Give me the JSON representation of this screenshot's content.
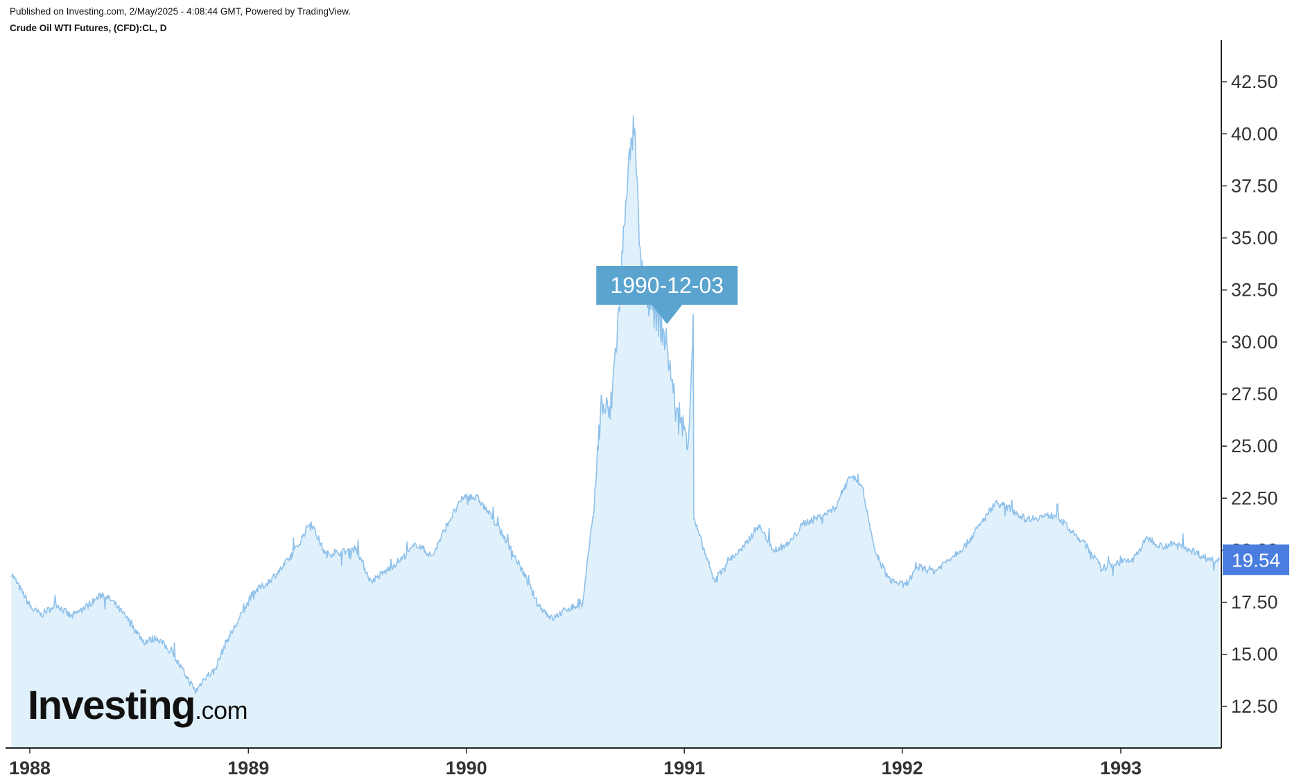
{
  "header": {
    "published": "Published on Investing.com, 2/May/2025 - 4:08:44 GMT, Powered by TradingView.",
    "symbol": "Crude Oil WTI Futures, (CFD):CL, D"
  },
  "logo": {
    "main": "Investing",
    "suffix": ".com"
  },
  "colors": {
    "line": "#8fc1ea",
    "area": "#e1f1fb",
    "callout": "#5ba4cf",
    "price_badge": "#4a7de0",
    "axis": "#222222"
  },
  "chart_data": {
    "type": "area",
    "series": [
      {
        "x": [
          "1987-12-01",
          "1988-01-04",
          "1988-01-20",
          "1988-02-15",
          "1988-03-10",
          "1988-04-05",
          "1988-05-02",
          "1988-05-20",
          "1988-06-15",
          "1988-07-10",
          "1988-08-01",
          "1988-08-25",
          "1988-09-20",
          "1988-10-05",
          "1988-10-20",
          "1988-11-05",
          "1988-11-25",
          "1988-12-15",
          "1989-01-10",
          "1989-02-01",
          "1989-02-28",
          "1989-03-25",
          "1989-04-15",
          "1989-05-10",
          "1989-06-05",
          "1989-06-30",
          "1989-07-25",
          "1989-08-20",
          "1989-09-15",
          "1989-10-10",
          "1989-11-05",
          "1989-12-01",
          "1989-12-28",
          "1990-01-20",
          "1990-02-15",
          "1990-03-10",
          "1990-04-05",
          "1990-05-01",
          "1990-05-25",
          "1990-06-20",
          "1990-07-15",
          "1990-08-02",
          "1990-08-15",
          "1990-08-30",
          "1990-09-15",
          "1990-09-26",
          "1990-10-09",
          "1990-10-20",
          "1990-11-05",
          "1990-11-20",
          "1990-12-03",
          "1990-12-20",
          "1991-01-08",
          "1991-01-16",
          "1991-01-17",
          "1991-02-01",
          "1991-02-20",
          "1991-03-15",
          "1991-04-10",
          "1991-05-05",
          "1991-06-01",
          "1991-06-25",
          "1991-07-20",
          "1991-08-15",
          "1991-09-10",
          "1991-10-05",
          "1991-10-25",
          "1991-11-15",
          "1991-12-10",
          "1992-01-05",
          "1992-01-30",
          "1992-02-25",
          "1992-03-20",
          "1992-04-15",
          "1992-05-10",
          "1992-06-05",
          "1992-06-30",
          "1992-07-25",
          "1992-08-20",
          "1992-09-15",
          "1992-10-10",
          "1992-11-05",
          "1992-11-30",
          "1992-12-25",
          "1993-01-20",
          "1993-02-15",
          "1993-03-10",
          "1993-04-05",
          "1993-04-30",
          "1993-05-25",
          "1993-06-15"
        ],
        "values": [
          18.9,
          17.2,
          16.9,
          17.4,
          16.8,
          17.3,
          17.9,
          17.5,
          16.6,
          15.6,
          15.8,
          15.1,
          13.9,
          13.2,
          13.9,
          14.2,
          15.6,
          16.6,
          18.0,
          18.4,
          19.2,
          20.2,
          21.4,
          19.8,
          19.9,
          20.1,
          18.5,
          19.0,
          19.6,
          20.3,
          19.7,
          21.3,
          22.6,
          22.5,
          21.5,
          20.4,
          19.0,
          17.4,
          16.7,
          17.2,
          17.4,
          22.0,
          27.0,
          26.5,
          32.0,
          37.5,
          40.4,
          33.5,
          31.5,
          31.0,
          29.8,
          26.3,
          25.5,
          31.0,
          21.5,
          20.2,
          18.5,
          19.5,
          20.1,
          21.2,
          20.0,
          20.3,
          21.3,
          21.6,
          22.0,
          23.6,
          23.2,
          20.0,
          18.6,
          18.3,
          19.2,
          19.0,
          19.6,
          20.2,
          21.2,
          22.3,
          22.0,
          21.5,
          21.6,
          21.7,
          20.9,
          20.2,
          19.1,
          19.4,
          19.5,
          20.6,
          20.2,
          20.3,
          20.0,
          19.6,
          19.54
        ]
      }
    ],
    "ylim": [
      10.5,
      44.5
    ],
    "yticks": [
      "12.50",
      "15.00",
      "17.50",
      "20.00",
      "22.50",
      "25.00",
      "27.50",
      "30.00",
      "32.50",
      "35.00",
      "37.50",
      "40.00",
      "42.50"
    ],
    "xticks": [
      "1988",
      "1989",
      "1990",
      "1991",
      "1992",
      "1993"
    ],
    "xlim": [
      "1987-11-26",
      "1993-06-16"
    ],
    "annotation": {
      "label": "1990-12-03",
      "x": "1990-12-03"
    },
    "last_price": "19.54",
    "grid": false
  }
}
